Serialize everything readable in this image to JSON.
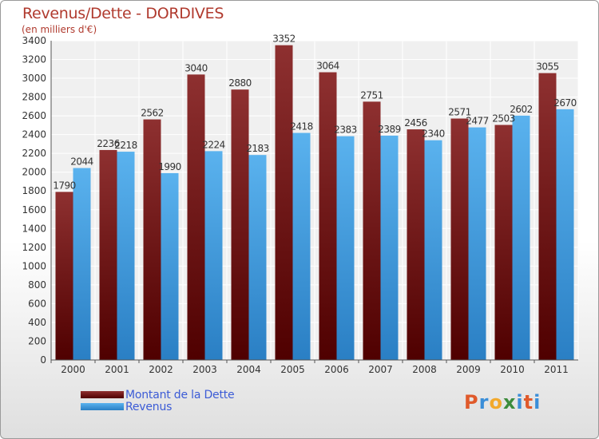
{
  "header": {
    "title": "Revenus/Dette - DORDIVES",
    "subtitle": "(en milliers d'€)"
  },
  "colors": {
    "dette": "#6b1111",
    "revenus": "#3d9de0"
  },
  "legend": {
    "items": [
      {
        "label": "Montant de la Dette",
        "color": "#6b1111"
      },
      {
        "label": "Revenus",
        "color": "#3d9de0"
      }
    ]
  },
  "logo": {
    "text": "Proxiti",
    "letters": [
      {
        "ch": "P",
        "color": "#e05a2b"
      },
      {
        "ch": "r",
        "color": "#3a8ed8"
      },
      {
        "ch": "o",
        "color": "#f2a92c"
      },
      {
        "ch": "x",
        "color": "#3c8c3c"
      },
      {
        "ch": "i",
        "color": "#3a8ed8"
      },
      {
        "ch": "t",
        "color": "#e05a2b"
      },
      {
        "ch": "i",
        "color": "#3a8ed8"
      }
    ]
  },
  "chart_data": {
    "type": "bar",
    "title": "Revenus/Dette - DORDIVES",
    "ylabel": "(en milliers d'€)",
    "categories": [
      "2000",
      "2001",
      "2002",
      "2003",
      "2004",
      "2005",
      "2006",
      "2007",
      "2008",
      "2009",
      "2010",
      "2011"
    ],
    "series": [
      {
        "name": "Montant de la Dette",
        "values": [
          1790,
          2236,
          2562,
          3040,
          2880,
          3352,
          3064,
          2751,
          2456,
          2571,
          2503,
          3055
        ]
      },
      {
        "name": "Revenus",
        "values": [
          2044,
          2218,
          1990,
          2224,
          2183,
          2418,
          2383,
          2389,
          2340,
          2477,
          2602,
          2670
        ]
      }
    ],
    "ylim": [
      0,
      3400
    ],
    "yticks": [
      0,
      200,
      400,
      600,
      800,
      1000,
      1200,
      1400,
      1600,
      1800,
      2000,
      2200,
      2400,
      2600,
      2800,
      3000,
      3200,
      3400
    ],
    "grid": true,
    "legend_position": "bottom-left"
  }
}
